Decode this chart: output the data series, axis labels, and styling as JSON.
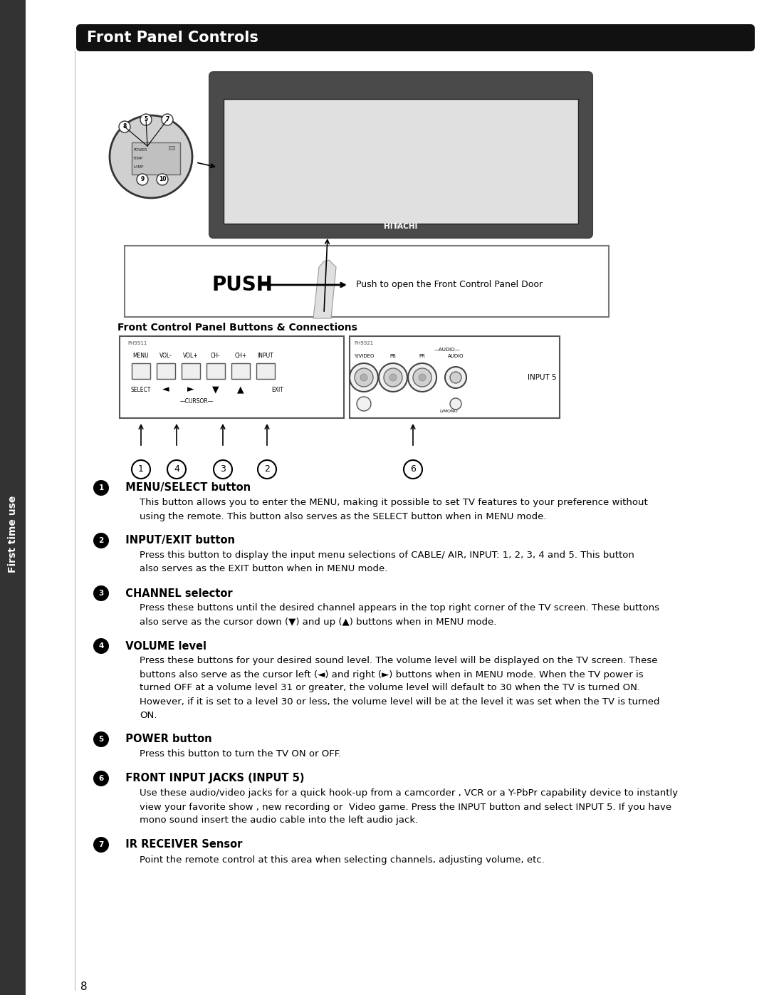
{
  "title": "Front Panel Controls",
  "title_bg": "#111111",
  "title_color": "#ffffff",
  "sidebar_label": "First time use",
  "sidebar_bg": "#333333",
  "sidebar_color": "#ffffff",
  "page_bg": "#ffffff",
  "page_number": "8",
  "subtitle_diagram": "Front Control Panel Buttons & Connections",
  "push_label": "PUSH",
  "push_desc": "Push to open the Front Control Panel Door",
  "sections": [
    {
      "number": "1",
      "title": "MENU/SELECT button",
      "lines": [
        "This button allows you to enter the MENU, making it possible to set TV features to your preference without",
        "using the remote. This button also serves as the SELECT button when in MENU mode."
      ]
    },
    {
      "number": "2",
      "title": "INPUT/EXIT button",
      "lines": [
        "Press this button to display the input menu selections of CABLE/ AIR, INPUT: 1, 2, 3, 4 and 5. This button",
        "also serves as the EXIT button when in MENU mode."
      ]
    },
    {
      "number": "3",
      "title": "CHANNEL selector",
      "lines": [
        "Press these buttons until the desired channel appears in the top right corner of the TV screen. These buttons",
        "also serve as the cursor down (▼) and up (▲) buttons when in MENU mode."
      ]
    },
    {
      "number": "4",
      "title": "VOLUME level",
      "lines": [
        "Press these buttons for your desired sound level. The volume level will be displayed on the TV screen. These",
        "buttons also serve as the cursor left (◄) and right (►) buttons when in MENU mode. When the TV power is",
        "turned OFF at a volume level 31 or greater, the volume level will default to 30 when the TV is turned ON.",
        "However, if it is set to a level 30 or less, the volume level will be at the level it was set when the TV is turned",
        "ON."
      ]
    },
    {
      "number": "5",
      "title": "POWER button",
      "lines": [
        "Press this button to turn the TV ON or OFF."
      ]
    },
    {
      "number": "6",
      "title": "FRONT INPUT JACKS (INPUT 5)",
      "lines": [
        "Use these audio/video jacks for a quick hook-up from a camcorder , VCR or a Y-PbPr capability device to instantly",
        "view your favorite show , new recording or  Video game. Press the INPUT button and select INPUT 5. If you have",
        "mono sound insert the audio cable into the left audio jack."
      ]
    },
    {
      "number": "7",
      "title": "IR RECEIVER Sensor",
      "lines": [
        "Point the remote control at this area when selecting channels, adjusting volume, etc."
      ]
    }
  ]
}
